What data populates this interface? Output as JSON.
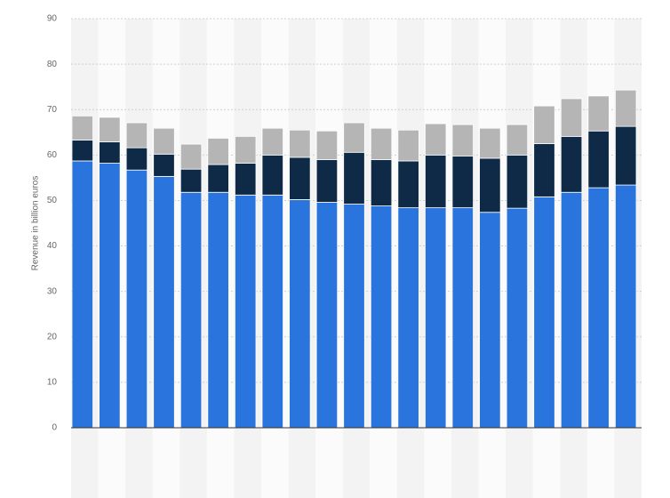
{
  "chart_data": {
    "type": "stacked_bar",
    "y_label": "Revenue in billion euros",
    "categories": [
      null,
      null,
      null,
      null,
      null,
      null,
      null,
      null,
      null,
      null,
      null,
      null,
      null,
      null,
      null,
      null,
      null,
      null,
      null,
      null,
      null
    ],
    "series": [
      {
        "color": "#2a75dd",
        "values": [
          58.7,
          58.2,
          56.7,
          55.3,
          51.8,
          51.8,
          51.2,
          51.2,
          50.2,
          49.6,
          49.2,
          48.8,
          48.4,
          48.4,
          48.4,
          47.4,
          48.3,
          50.8,
          51.8,
          52.8,
          53.4
        ]
      },
      {
        "color": "#0e2a47",
        "values": [
          4.6,
          4.7,
          4.9,
          4.9,
          5.1,
          6.1,
          7.0,
          8.8,
          9.3,
          9.4,
          11.4,
          10.2,
          10.3,
          11.6,
          11.4,
          11.9,
          11.7,
          11.7,
          12.3,
          12.5,
          12.9
        ]
      },
      {
        "color": "#b5b5b5",
        "values": [
          5.3,
          5.4,
          5.5,
          5.7,
          5.5,
          5.8,
          5.9,
          5.9,
          6.0,
          6.3,
          6.5,
          6.9,
          6.8,
          6.9,
          6.9,
          6.6,
          6.7,
          8.3,
          8.3,
          7.7,
          8.0
        ]
      }
    ],
    "ylim": [
      0,
      90
    ],
    "yticks": [
      0,
      10,
      20,
      30,
      40,
      50,
      60,
      70,
      80,
      90
    ],
    "grid": true
  }
}
